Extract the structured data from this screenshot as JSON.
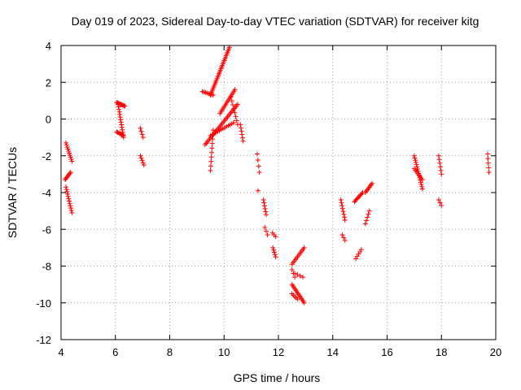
{
  "chart_data": {
    "type": "scatter",
    "title": "Day 019 of 2023, Sidereal Day-to-day VTEC variation (SDTVAR) for receiver kitg",
    "xlabel": "GPS time / hours",
    "ylabel": "SDTVAR / TECUs",
    "xlim": [
      4,
      20
    ],
    "ylim": [
      -12,
      4
    ],
    "xticks": [
      4,
      6,
      8,
      10,
      12,
      14,
      16,
      18,
      20
    ],
    "yticks": [
      -12,
      -10,
      -8,
      -6,
      -4,
      -2,
      0,
      2,
      4
    ],
    "grid": true,
    "marker": "+",
    "series_color": "#ff0000",
    "segments": [
      {
        "x": [
          4.18,
          4.4
        ],
        "y": [
          -1.3,
          -2.3
        ],
        "n": 10
      },
      {
        "x": [
          4.15,
          4.35
        ],
        "y": [
          -3.3,
          -2.9
        ],
        "n": 8
      },
      {
        "x": [
          4.18,
          4.4
        ],
        "y": [
          -3.7,
          -5.1
        ],
        "n": 12
      },
      {
        "x": [
          6.05,
          6.35
        ],
        "y": [
          0.9,
          0.7
        ],
        "n": 10
      },
      {
        "x": [
          6.1,
          6.3
        ],
        "y": [
          0.8,
          -1.0
        ],
        "n": 14
      },
      {
        "x": [
          6.05,
          6.3
        ],
        "y": [
          -0.7,
          -0.9
        ],
        "n": 8
      },
      {
        "x": [
          6.92,
          7.02
        ],
        "y": [
          -0.5,
          -1.0
        ],
        "n": 4
      },
      {
        "x": [
          6.92,
          7.05
        ],
        "y": [
          -2.0,
          -2.5
        ],
        "n": 5
      },
      {
        "x": [
          9.2,
          9.6
        ],
        "y": [
          1.5,
          1.3
        ],
        "n": 8
      },
      {
        "x": [
          9.5,
          10.2
        ],
        "y": [
          1.3,
          3.9
        ],
        "n": 30
      },
      {
        "x": [
          9.85,
          10.4
        ],
        "y": [
          0.3,
          1.6
        ],
        "n": 16
      },
      {
        "x": [
          9.3,
          10.5
        ],
        "y": [
          -1.4,
          0.8
        ],
        "n": 30
      },
      {
        "x": [
          9.5,
          9.6
        ],
        "y": [
          -2.8,
          -0.6
        ],
        "n": 10
      },
      {
        "x": [
          9.5,
          10.35
        ],
        "y": [
          -0.9,
          -0.2
        ],
        "n": 14
      },
      {
        "x": [
          10.25,
          10.5
        ],
        "y": [
          1.2,
          -0.3
        ],
        "n": 8
      },
      {
        "x": [
          10.6,
          10.7
        ],
        "y": [
          -0.3,
          -1.2
        ],
        "n": 6
      },
      {
        "x": [
          11.22,
          11.3
        ],
        "y": [
          -1.9,
          -2.9
        ],
        "n": 4
      },
      {
        "x": [
          11.25,
          11.3
        ],
        "y": [
          -3.9,
          -3.9
        ],
        "n": 1
      },
      {
        "x": [
          11.45,
          11.55
        ],
        "y": [
          -4.4,
          -5.2
        ],
        "n": 6
      },
      {
        "x": [
          11.5,
          11.6
        ],
        "y": [
          -5.9,
          -6.3
        ],
        "n": 3
      },
      {
        "x": [
          11.78,
          11.9
        ],
        "y": [
          -6.2,
          -6.4
        ],
        "n": 3
      },
      {
        "x": [
          11.8,
          11.9
        ],
        "y": [
          -7.0,
          -7.5
        ],
        "n": 5
      },
      {
        "x": [
          12.5,
          12.95
        ],
        "y": [
          -7.9,
          -7.0
        ],
        "n": 12
      },
      {
        "x": [
          12.5,
          12.6
        ],
        "y": [
          -8.2,
          -8.6
        ],
        "n": 3
      },
      {
        "x": [
          12.6,
          12.9
        ],
        "y": [
          -8.4,
          -8.6
        ],
        "n": 4
      },
      {
        "x": [
          12.5,
          12.95
        ],
        "y": [
          -9.0,
          -10.0
        ],
        "n": 14
      },
      {
        "x": [
          12.5,
          12.7
        ],
        "y": [
          -9.5,
          -9.8
        ],
        "n": 5
      },
      {
        "x": [
          14.3,
          14.45
        ],
        "y": [
          -4.4,
          -5.5
        ],
        "n": 8
      },
      {
        "x": [
          14.35,
          14.45
        ],
        "y": [
          -6.3,
          -6.6
        ],
        "n": 3
      },
      {
        "x": [
          14.8,
          15.1
        ],
        "y": [
          -4.5,
          -4.0
        ],
        "n": 10
      },
      {
        "x": [
          14.85,
          15.05
        ],
        "y": [
          -7.6,
          -7.1
        ],
        "n": 5
      },
      {
        "x": [
          15.2,
          15.45
        ],
        "y": [
          -4.0,
          -3.5
        ],
        "n": 8
      },
      {
        "x": [
          15.2,
          15.35
        ],
        "y": [
          -5.7,
          -5.0
        ],
        "n": 5
      },
      {
        "x": [
          17.0,
          17.3
        ],
        "y": [
          -2.0,
          -3.8
        ],
        "n": 16
      },
      {
        "x": [
          17.0,
          17.3
        ],
        "y": [
          -2.7,
          -3.3
        ],
        "n": 8
      },
      {
        "x": [
          17.9,
          18.0
        ],
        "y": [
          -2.0,
          -3.0
        ],
        "n": 6
      },
      {
        "x": [
          17.9,
          18.0
        ],
        "y": [
          -4.4,
          -4.7
        ],
        "n": 3
      },
      {
        "x": [
          19.7,
          19.75
        ],
        "y": [
          -1.9,
          -2.9
        ],
        "n": 5
      }
    ]
  }
}
